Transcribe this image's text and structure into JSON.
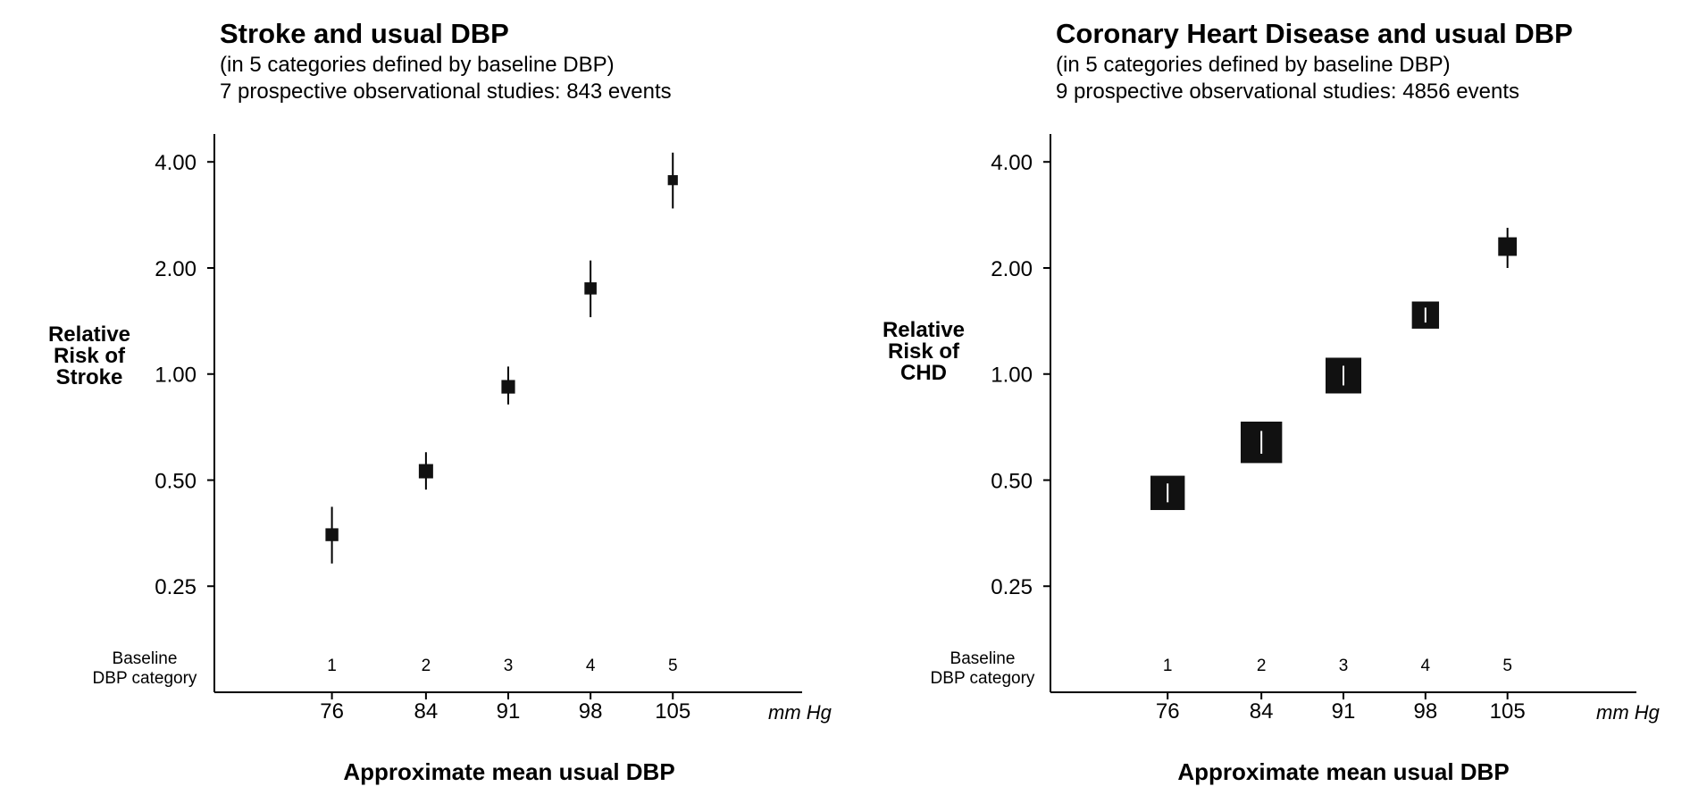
{
  "chart_data": [
    {
      "type": "scatter",
      "title": "Stroke and usual DBP",
      "subtitle_lines": [
        "(in 5 categories defined by baseline DBP)",
        "7 prospective observational studies: 843 events"
      ],
      "ylabel_lines": [
        "Relative",
        "Risk of",
        "Stroke"
      ],
      "xlabel": "Approximate mean usual DBP",
      "x_unit": "mm Hg",
      "y_scale": "log",
      "ylim": [
        0.125,
        4.8
      ],
      "xlim": [
        66,
        116
      ],
      "y_ticks": [
        0.25,
        0.5,
        1.0,
        2.0,
        4.0
      ],
      "y_tick_labels": [
        "0.25",
        "0.50",
        "1.00",
        "2.00",
        "4.00"
      ],
      "x_ticks": [
        76,
        84,
        91,
        98,
        105
      ],
      "x_tick_labels": [
        "76",
        "84",
        "91",
        "98",
        "105"
      ],
      "category_label_lines": [
        "Baseline",
        "DBP category"
      ],
      "categories": [
        "1",
        "2",
        "3",
        "4",
        "5"
      ],
      "points": [
        {
          "x": 76,
          "y": 0.35,
          "ci": [
            0.29,
            0.42
          ],
          "weight": 0.9
        },
        {
          "x": 84,
          "y": 0.53,
          "ci": [
            0.47,
            0.6
          ],
          "weight": 1.0
        },
        {
          "x": 91,
          "y": 0.92,
          "ci": [
            0.82,
            1.05
          ],
          "weight": 0.95
        },
        {
          "x": 98,
          "y": 1.75,
          "ci": [
            1.45,
            2.1
          ],
          "weight": 0.85
        },
        {
          "x": 105,
          "y": 3.55,
          "ci": [
            2.95,
            4.25
          ],
          "weight": 0.7
        }
      ]
    },
    {
      "type": "scatter",
      "title": "Coronary Heart Disease and usual DBP",
      "subtitle_lines": [
        "(in 5 categories defined by baseline DBP)",
        "9 prospective observational studies: 4856 events"
      ],
      "ylabel_lines": [
        "Relative",
        "Risk of",
        "CHD"
      ],
      "xlabel": "Approximate mean usual DBP",
      "x_unit": "mm Hg",
      "y_scale": "log",
      "ylim": [
        0.125,
        4.8
      ],
      "xlim": [
        66,
        116
      ],
      "y_ticks": [
        0.25,
        0.5,
        1.0,
        2.0,
        4.0
      ],
      "y_tick_labels": [
        "0.25",
        "0.50",
        "1.00",
        "2.00",
        "4.00"
      ],
      "x_ticks": [
        76,
        84,
        91,
        98,
        105
      ],
      "x_tick_labels": [
        "76",
        "84",
        "91",
        "98",
        "105"
      ],
      "category_label_lines": [
        "Baseline",
        "DBP category"
      ],
      "categories": [
        "1",
        "2",
        "3",
        "4",
        "5"
      ],
      "points": [
        {
          "x": 76,
          "y": 0.46,
          "ci": [
            0.42,
            0.5
          ],
          "weight": 2.4
        },
        {
          "x": 84,
          "y": 0.64,
          "ci": [
            0.61,
            0.68
          ],
          "weight": 2.9
        },
        {
          "x": 91,
          "y": 0.99,
          "ci": [
            0.94,
            1.05
          ],
          "weight": 2.5
        },
        {
          "x": 98,
          "y": 1.47,
          "ci": [
            1.38,
            1.56
          ],
          "weight": 1.9
        },
        {
          "x": 105,
          "y": 2.3,
          "ci": [
            2.0,
            2.6
          ],
          "weight": 1.3
        }
      ]
    }
  ]
}
